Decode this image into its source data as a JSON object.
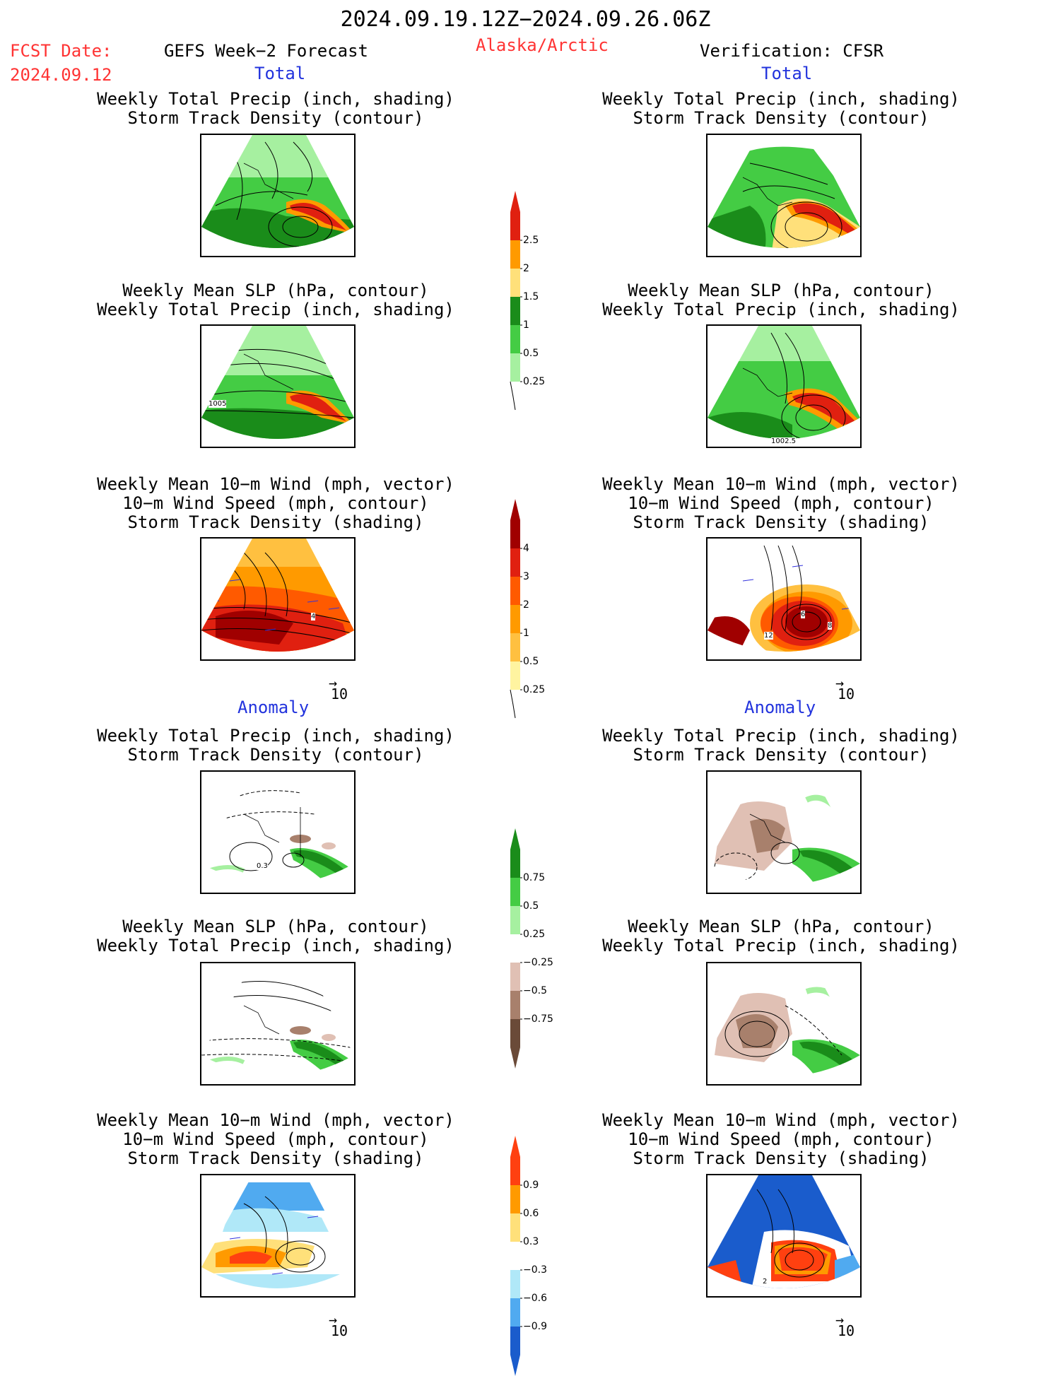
{
  "header": {
    "date_range": "2024.09.19.12Z−2024.09.26.06Z",
    "fcst_label": "FCST Date:",
    "fcst_date": "2024.09.12",
    "model": "GEFS Week−2 Forecast",
    "region": "Alaska/Arctic",
    "verification": "Verification: CFSR"
  },
  "sections": {
    "total_left": "Total",
    "total_right": "Total",
    "anomaly_left": "Anomaly",
    "anomaly_right": "Anomaly"
  },
  "panel_titles": {
    "precip_track": "Weekly Total Precip (inch, shading)\nStorm Track Density (contour)",
    "slp_precip": "Weekly Mean SLP (hPa, contour)\nWeekly Total Precip (inch, shading)",
    "wind_track": "Weekly Mean 10−m Wind (mph, vector)\n10−m Wind Speed (mph, contour)\nStorm Track Density (shading)"
  },
  "map_labels": {
    "slp_left_contour": "1005",
    "slp_right_contour": "1002.5",
    "wind_right_a": "12",
    "wind_right_b": "8",
    "wind_right_c": "6",
    "wind_left_a": "4",
    "anom_left_a": "0.3",
    "anom_right_wind_a": "2"
  },
  "vector_scale": {
    "label": "10",
    "arrow": "→"
  },
  "colorbars": {
    "precip_total": {
      "labels": [
        "2.5",
        "2",
        "1.5",
        "1",
        "0.5",
        "0.25"
      ],
      "colors": [
        "#e02010",
        "#ff9a00",
        "#ffe07a",
        "#1a8c1a",
        "#44cc44",
        "#a6f0a0"
      ]
    },
    "storm_total": {
      "labels": [
        "4",
        "3",
        "2",
        "1",
        "0.5",
        "0.25"
      ],
      "colors": [
        "#a00000",
        "#e02010",
        "#ff5a00",
        "#ff9a00",
        "#ffc040",
        "#fff4a0"
      ]
    },
    "precip_anom": {
      "labels": [
        "0.75",
        "0.5",
        "0.25",
        "−0.25",
        "−0.5",
        "−0.75"
      ],
      "colors": [
        "#1a8c1a",
        "#44cc44",
        "#a6f0a0",
        "#ffffff",
        "#e0c0b4",
        "#a8806c",
        "#6a4a38"
      ]
    },
    "storm_anom": {
      "labels": [
        "0.9",
        "0.6",
        "0.3",
        "−0.3",
        "−0.6",
        "−0.9"
      ],
      "colors": [
        "#ff4010",
        "#ff9a00",
        "#ffe07a",
        "#ffffff",
        "#b0e8f8",
        "#50aaf0",
        "#1a5ccc"
      ]
    }
  },
  "colors": {
    "red": "#ff3333",
    "blue": "#2233dd"
  }
}
